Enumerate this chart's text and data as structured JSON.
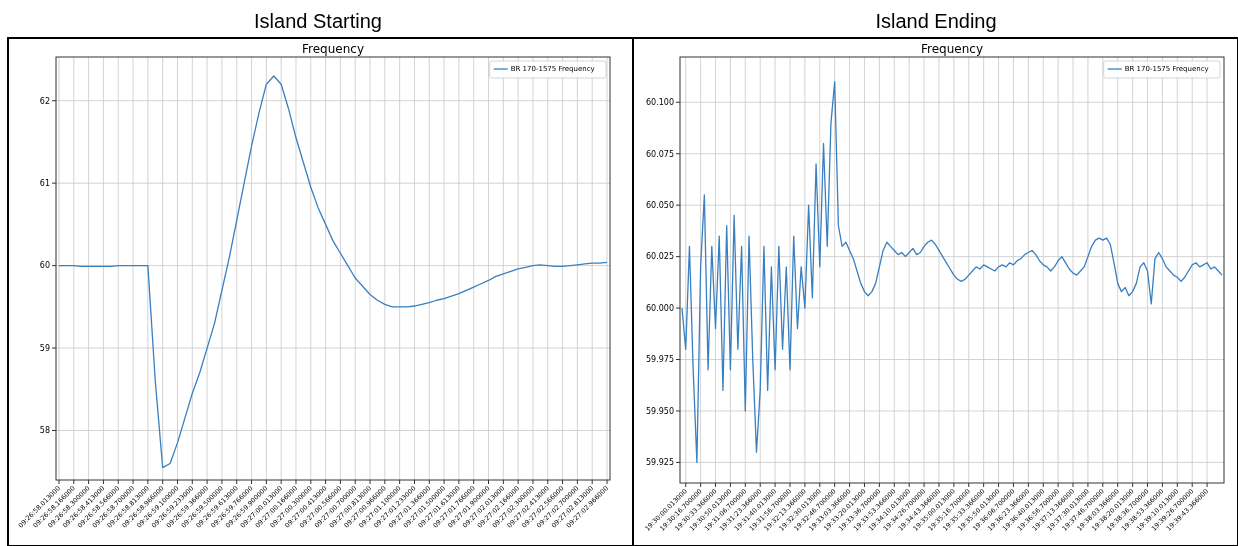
{
  "chart_data": [
    {
      "type": "line",
      "title": "Island Starting",
      "subtitle": "Frequency",
      "categories": [
        "09:26:58.013000",
        null,
        "09:26:58.166000",
        null,
        "09:26:58.300000",
        null,
        "09:26:58.413000",
        null,
        "09:26:58.566000",
        null,
        "09:26:58.700000",
        null,
        "09:26:58.813000",
        null,
        "09:26:58.966000",
        null,
        "09:26:59.100000",
        null,
        "09:26:59.233000",
        null,
        "09:26:59.366000",
        null,
        "09:26:59.500000",
        null,
        "09:26:59.613000",
        null,
        "09:26:59.766000",
        null,
        "09:26:59.900000",
        null,
        "09:27:00.013000",
        null,
        "09:27:00.166000",
        null,
        "09:27:00.300000",
        null,
        "09:27:00.413000",
        null,
        "09:27:00.566000",
        null,
        "09:27:00.700000",
        null,
        "09:27:00.813000",
        null,
        "09:27:00.966000",
        null,
        "09:27:01.100000",
        null,
        "09:27:01.233000",
        null,
        "09:27:01.366000",
        null,
        "09:27:01.500000",
        null,
        "09:27:01.613000",
        null,
        "09:27:01.766000",
        null,
        "09:27:01.900000",
        null,
        "09:27:02.013000",
        null,
        "09:27:02.166000",
        null,
        "09:27:02.300000",
        null,
        "09:27:02.413000",
        null,
        "09:27:02.566000",
        null,
        "09:27:02.700000",
        null,
        "09:27:02.813000",
        null,
        "09:27:02.966000"
      ],
      "series": [
        {
          "name": "BR 170-1575 Frequency",
          "color": "#3a7fc0",
          "values": [
            60.0,
            60.0,
            60.0,
            59.99,
            59.99,
            59.99,
            59.99,
            59.99,
            60.0,
            60.0,
            60.0,
            60.0,
            60.0,
            58.6,
            57.55,
            57.6,
            57.85,
            58.15,
            58.45,
            58.7,
            59.0,
            59.3,
            59.7,
            60.1,
            60.55,
            61.0,
            61.45,
            61.85,
            62.2,
            62.3,
            62.2,
            61.9,
            61.55,
            61.25,
            60.95,
            60.7,
            60.5,
            60.3,
            60.15,
            60.0,
            59.85,
            59.75,
            59.65,
            59.58,
            59.53,
            59.5,
            59.5,
            59.5,
            59.51,
            59.53,
            59.55,
            59.58,
            59.6,
            59.63,
            59.66,
            59.7,
            59.74,
            59.78,
            59.82,
            59.87,
            59.9,
            59.93,
            59.96,
            59.98,
            60.0,
            60.01,
            60.0,
            59.99,
            59.99,
            60.0,
            60.01,
            60.02,
            60.03,
            60.03,
            60.04
          ]
        }
      ],
      "ylim": [
        57.4,
        62.53
      ],
      "yticks": [
        58,
        59,
        60,
        61,
        62
      ],
      "grid": true,
      "legend": "top right"
    },
    {
      "type": "line",
      "title": "Island Ending",
      "subtitle": "Frequency",
      "categories": [
        null,
        "19:30:00.013000",
        null,
        null,
        null,
        "19:30:16.700000",
        null,
        null,
        null,
        "19:30:33.366000",
        null,
        null,
        null,
        "19:30:50.013000",
        null,
        null,
        null,
        "19:31:06.700000",
        null,
        null,
        null,
        "19:31:23.366000",
        null,
        null,
        null,
        "19:31:40.013000",
        null,
        null,
        null,
        "19:31:56.700000",
        null,
        null,
        null,
        "19:32:13.366000",
        null,
        null,
        null,
        "19:32:30.013000",
        null,
        null,
        null,
        "19:32:46.700000",
        null,
        null,
        null,
        "19:33:03.366000",
        null,
        null,
        null,
        "19:33:20.013000",
        null,
        null,
        null,
        "19:33:36.700000",
        null,
        null,
        null,
        "19:33:53.366000",
        null,
        null,
        null,
        "19:34:10.013000",
        null,
        null,
        null,
        "19:34:26.700000",
        null,
        null,
        null,
        "19:34:43.366000",
        null,
        null,
        null,
        "19:35:00.013000",
        null,
        null,
        null,
        "19:35:16.700000",
        null,
        null,
        null,
        "19:35:33.366000",
        null,
        null,
        null,
        "19:35:50.013000",
        null,
        null,
        null,
        "19:36:06.700000",
        null,
        null,
        null,
        "19:36:23.366000",
        null,
        null,
        null,
        "19:36:40.013000",
        null,
        null,
        null,
        "19:36:56.700000",
        null,
        null,
        null,
        "19:37:13.366000",
        null,
        null,
        null,
        "19:37:30.013000",
        null,
        null,
        null,
        "19:37:46.700000",
        null,
        null,
        null,
        "19:38:03.366000",
        null,
        null,
        null,
        "19:38:20.013000",
        null,
        null,
        null,
        "19:38:36.700000",
        null,
        null,
        null,
        "19:38:53.366000",
        null,
        null,
        null,
        "19:39:10.013000",
        null,
        null,
        null,
        "19:39:26.700000",
        null,
        null,
        null,
        "19:39:43.366000",
        null,
        null,
        null,
        null
      ],
      "series": [
        {
          "name": "BR 170-1575 Frequency",
          "color": "#3a7fc0",
          "values": [
            60.0,
            59.98,
            60.03,
            59.97,
            59.925,
            60.02,
            60.055,
            59.97,
            60.03,
            59.99,
            60.035,
            59.96,
            60.04,
            59.97,
            60.045,
            59.98,
            60.03,
            59.95,
            60.035,
            59.975,
            59.93,
            59.96,
            60.03,
            59.96,
            60.02,
            59.97,
            60.03,
            59.98,
            60.02,
            59.97,
            60.035,
            59.99,
            60.02,
            60.0,
            60.05,
            60.005,
            60.07,
            60.02,
            60.08,
            60.03,
            60.09,
            60.11,
            60.04,
            60.03,
            60.032,
            60.028,
            60.024,
            60.018,
            60.012,
            60.008,
            60.006,
            60.008,
            60.012,
            60.02,
            60.028,
            60.032,
            60.03,
            60.028,
            60.026,
            60.027,
            60.025,
            60.027,
            60.029,
            60.026,
            60.027,
            60.03,
            60.032,
            60.033,
            60.031,
            60.028,
            60.025,
            60.022,
            60.019,
            60.016,
            60.014,
            60.013,
            60.014,
            60.016,
            60.018,
            60.02,
            60.019,
            60.021,
            60.02,
            60.019,
            60.018,
            60.02,
            60.021,
            60.02,
            60.022,
            60.021,
            60.023,
            60.024,
            60.026,
            60.027,
            60.028,
            60.026,
            60.023,
            60.021,
            60.02,
            60.018,
            60.02,
            60.023,
            60.025,
            60.022,
            60.019,
            60.017,
            60.016,
            60.018,
            60.02,
            60.025,
            60.03,
            60.033,
            60.034,
            60.033,
            60.034,
            60.031,
            60.022,
            60.012,
            60.008,
            60.01,
            60.006,
            60.008,
            60.012,
            60.02,
            60.022,
            60.018,
            60.002,
            60.024,
            60.027,
            60.024,
            60.02,
            60.018,
            60.016,
            60.015,
            60.013,
            60.015,
            60.018,
            60.021,
            60.022,
            60.02,
            60.021,
            60.022,
            60.019,
            60.02,
            60.018,
            60.016
          ]
        }
      ],
      "ylim": [
        59.915,
        60.122
      ],
      "yticks": [
        {
          "value": 59.925,
          "label": "59.925"
        },
        {
          "value": 59.95,
          "label": "59.950"
        },
        {
          "value": 59.975,
          "label": "59.975"
        },
        {
          "value": 60.0,
          "label": "60.000"
        },
        {
          "value": 60.025,
          "label": "60.025"
        },
        {
          "value": 60.05,
          "label": "60.050"
        },
        {
          "value": 60.075,
          "label": "60.075"
        },
        {
          "value": 60.1,
          "label": "60.100"
        }
      ],
      "grid": true,
      "legend": "top right"
    }
  ]
}
